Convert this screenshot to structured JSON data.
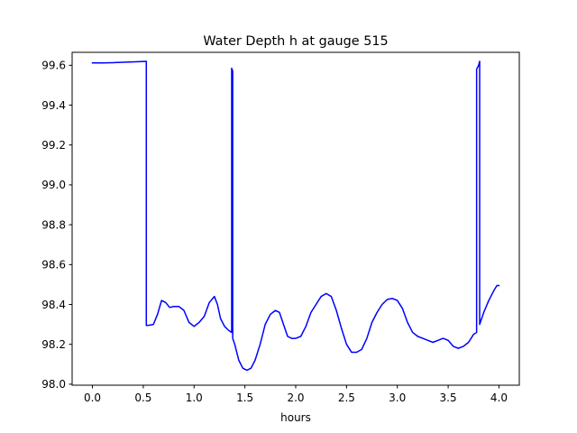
{
  "chart_data": {
    "type": "line",
    "title": "Water Depth h at gauge 515",
    "xlabel": "hours",
    "ylabel": "",
    "xlim": [
      -0.2,
      4.2
    ],
    "ylim": [
      97.995,
      99.665
    ],
    "xticks": [
      0.0,
      0.5,
      1.0,
      1.5,
      2.0,
      2.5,
      3.0,
      3.5,
      4.0
    ],
    "xtick_labels": [
      "0.0",
      "0.5",
      "1.0",
      "1.5",
      "2.0",
      "2.5",
      "3.0",
      "3.5",
      "4.0"
    ],
    "yticks": [
      98.0,
      98.2,
      98.4,
      98.6,
      98.8,
      99.0,
      99.2,
      99.4,
      99.6
    ],
    "ytick_labels": [
      "98.0",
      "98.2",
      "98.4",
      "98.6",
      "98.8",
      "99.0",
      "99.2",
      "99.4",
      "99.6"
    ],
    "grid": false,
    "legend": "none",
    "series": [
      {
        "color": "#0000ff",
        "x": [
          0.0,
          0.1,
          0.2,
          0.3,
          0.4,
          0.53,
          0.53,
          0.56,
          0.6,
          0.64,
          0.68,
          0.72,
          0.76,
          0.8,
          0.85,
          0.9,
          0.95,
          1.0,
          1.05,
          1.1,
          1.15,
          1.2,
          1.23,
          1.26,
          1.3,
          1.34,
          1.37,
          1.37,
          1.38,
          1.38,
          1.4,
          1.44,
          1.48,
          1.52,
          1.56,
          1.6,
          1.65,
          1.7,
          1.75,
          1.8,
          1.84,
          1.88,
          1.92,
          1.96,
          2.0,
          2.05,
          2.1,
          2.15,
          2.2,
          2.25,
          2.3,
          2.35,
          2.4,
          2.45,
          2.5,
          2.55,
          2.6,
          2.65,
          2.7,
          2.75,
          2.8,
          2.85,
          2.9,
          2.95,
          3.0,
          3.05,
          3.1,
          3.15,
          3.2,
          3.25,
          3.3,
          3.35,
          3.4,
          3.45,
          3.5,
          3.55,
          3.6,
          3.65,
          3.7,
          3.75,
          3.78,
          3.78,
          3.8,
          3.81,
          3.81,
          3.85,
          3.9,
          3.95,
          3.98,
          4.0
        ],
        "y": [
          99.612,
          99.612,
          99.613,
          99.615,
          99.617,
          99.62,
          98.295,
          98.296,
          98.3,
          98.35,
          98.42,
          98.41,
          98.385,
          98.39,
          98.39,
          98.37,
          98.31,
          98.29,
          98.31,
          98.34,
          98.41,
          98.44,
          98.4,
          98.33,
          98.29,
          98.27,
          98.26,
          99.585,
          99.57,
          98.23,
          98.2,
          98.12,
          98.08,
          98.07,
          98.08,
          98.12,
          98.2,
          98.3,
          98.35,
          98.37,
          98.36,
          98.3,
          98.24,
          98.23,
          98.23,
          98.24,
          98.29,
          98.36,
          98.4,
          98.44,
          98.455,
          98.44,
          98.37,
          98.28,
          98.2,
          98.16,
          98.16,
          98.175,
          98.23,
          98.31,
          98.36,
          98.4,
          98.425,
          98.43,
          98.42,
          98.38,
          98.31,
          98.26,
          98.24,
          98.23,
          98.22,
          98.21,
          98.22,
          98.23,
          98.22,
          98.19,
          98.18,
          98.19,
          98.21,
          98.25,
          98.26,
          99.58,
          99.6,
          99.62,
          98.3,
          98.36,
          98.42,
          98.47,
          98.495,
          98.495
        ]
      }
    ]
  }
}
